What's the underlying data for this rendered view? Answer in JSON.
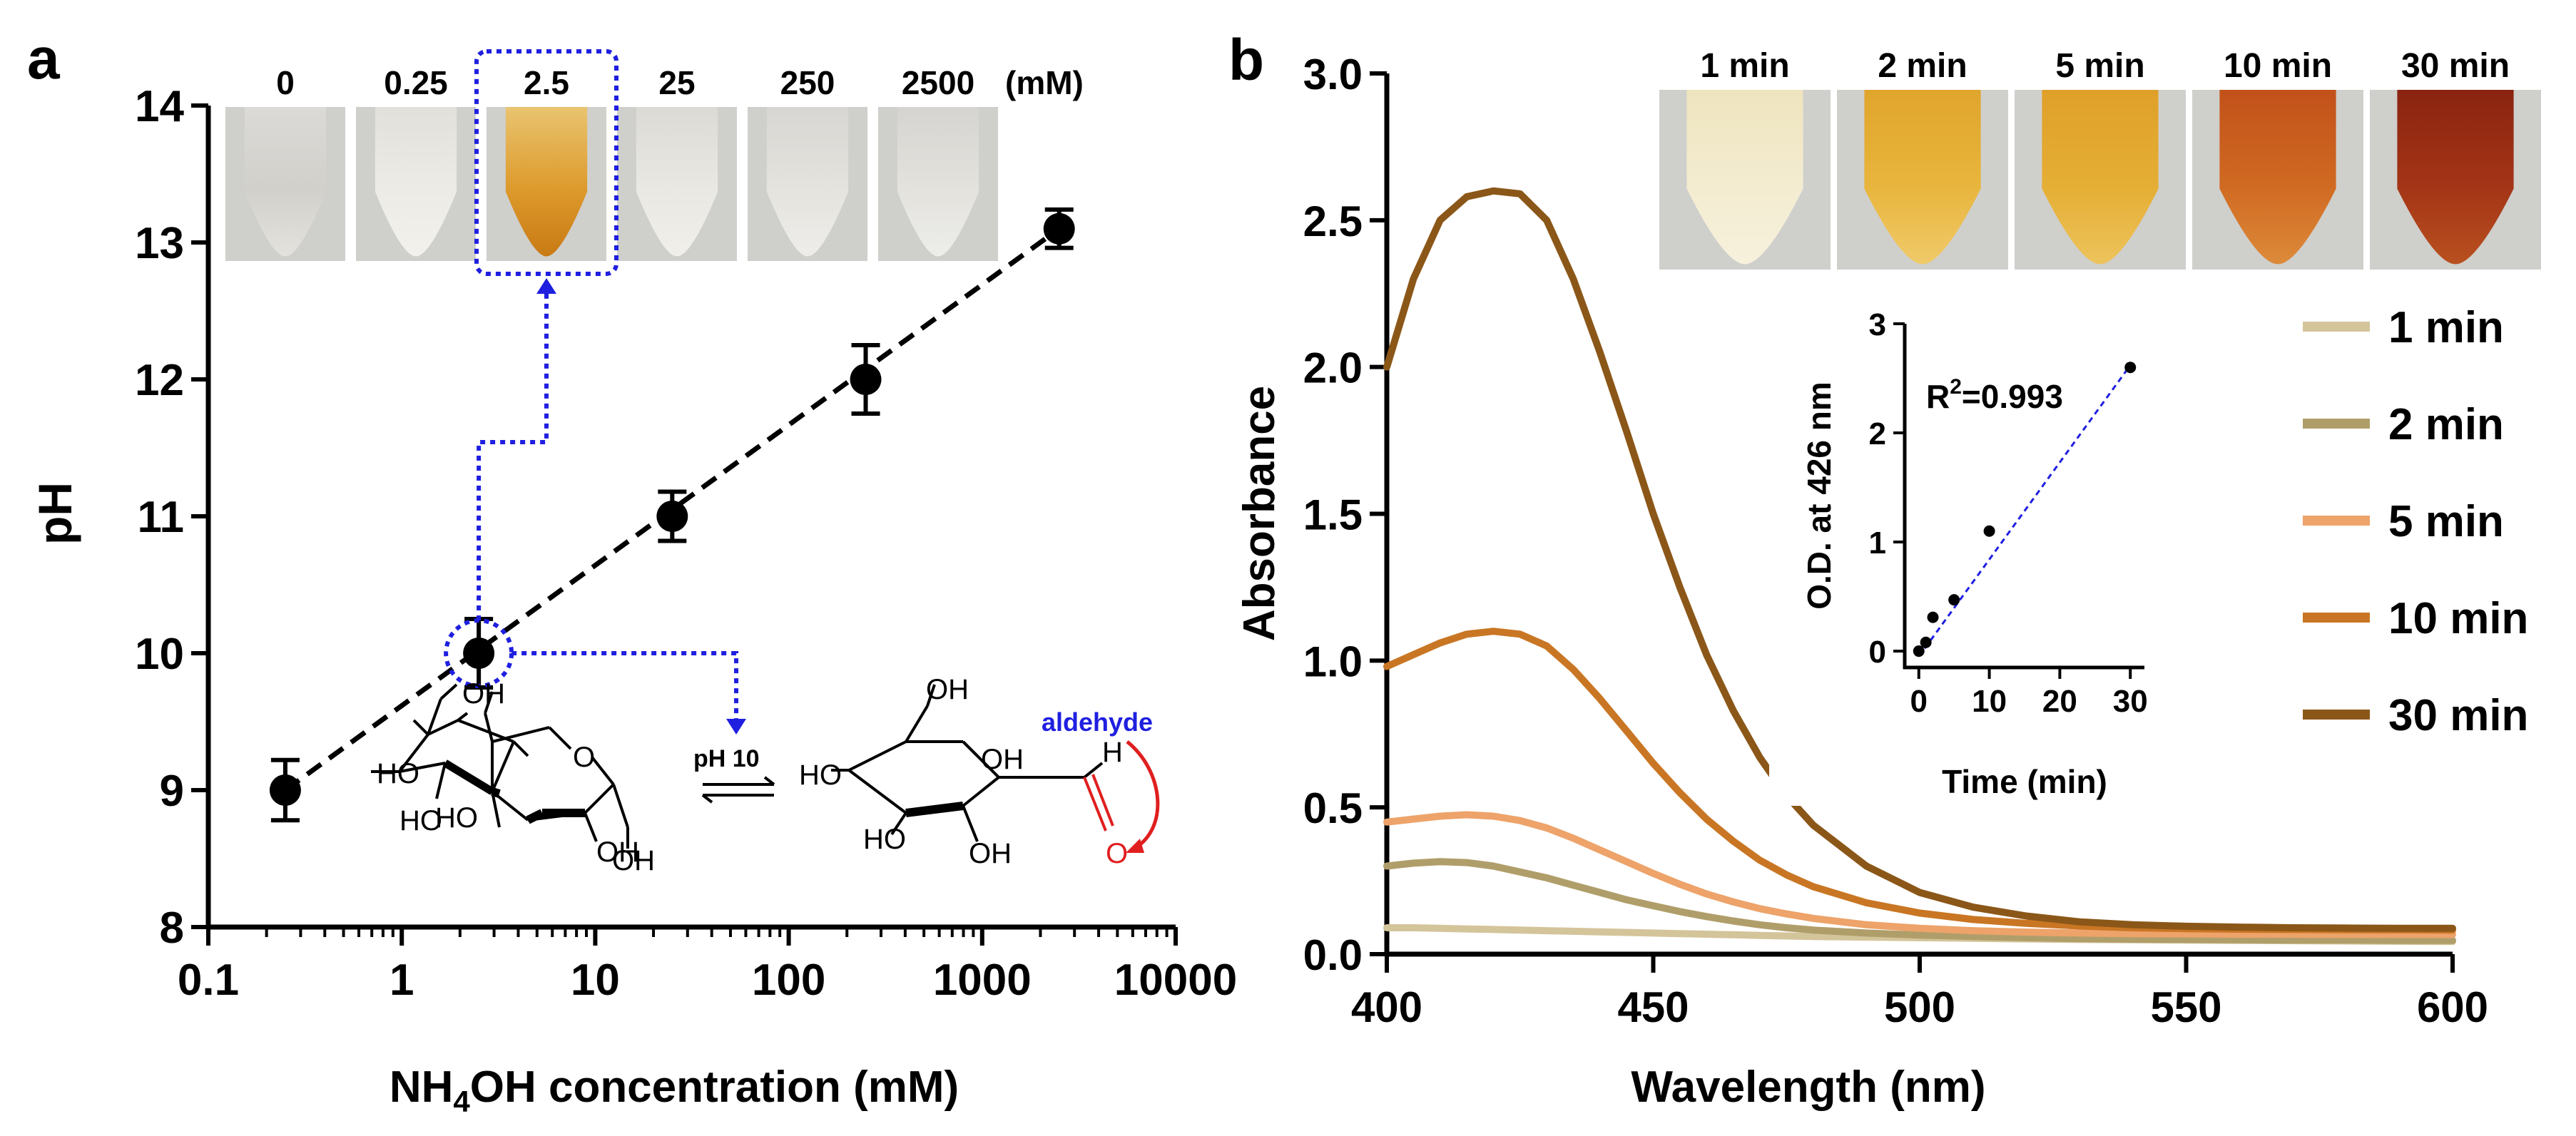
{
  "panels": {
    "a": {
      "label": "a"
    },
    "b": {
      "label": "b"
    }
  },
  "chart_data": [
    {
      "type": "scatter",
      "panel": "a",
      "xscale": "log",
      "xlabel_main": "NH",
      "xlabel_sub": "4",
      "xlabel_rest": "OH concentration (mM)",
      "ylabel": "pH",
      "xlim": [
        0.1,
        10000
      ],
      "ylim": [
        8,
        14
      ],
      "xticks": [
        0.1,
        1,
        10,
        100,
        1000,
        10000
      ],
      "xtick_labels": [
        "0.1",
        "1",
        "10",
        "100",
        "1000",
        "10000"
      ],
      "yticks": [
        8,
        9,
        10,
        11,
        12,
        13,
        14
      ],
      "ytick_labels": [
        "8",
        "9",
        "10",
        "11",
        "12",
        "13",
        "14"
      ],
      "points": [
        {
          "x": 0.25,
          "y": 9.0,
          "err": 0.22
        },
        {
          "x": 2.5,
          "y": 10.0,
          "err": 0.25
        },
        {
          "x": 25,
          "y": 11.0,
          "err": 0.18
        },
        {
          "x": 250,
          "y": 12.0,
          "err": 0.25
        },
        {
          "x": 2500,
          "y": 13.1,
          "err": 0.14
        }
      ],
      "fit_line": {
        "x": [
          0.25,
          2500
        ],
        "y": [
          9.0,
          13.1
        ],
        "style": "dashed"
      },
      "tube_labels": [
        "0",
        "0.25",
        "2.5",
        "25",
        "250",
        "2500"
      ],
      "tube_unit": "(mM)",
      "tube_colors": [
        {
          "top": "#dcdad6",
          "mid": "#d2d0cb",
          "bottom": "#e4e2dd"
        },
        {
          "top": "#e2e0db",
          "mid": "#ecebe6",
          "bottom": "#f2f1ec"
        },
        {
          "top": "#e9c470",
          "mid": "#dd9a2c",
          "bottom": "#c97a14"
        },
        {
          "top": "#dcdad5",
          "mid": "#e9e8e3",
          "bottom": "#f0efea"
        },
        {
          "top": "#d8d6d2",
          "mid": "#e4e3de",
          "bottom": "#eeede9"
        },
        {
          "top": "#d6d4d0",
          "mid": "#e3e2dd",
          "bottom": "#ededea"
        }
      ],
      "annotation": {
        "condition": "pH 10",
        "aldehyde_label": "aldehyde",
        "glucose_ring": {
          "oh_top": "OH",
          "ho_left": "HO",
          "ho_bottom": "HO",
          "oh_mid": "OH",
          "oh_right": "OH",
          "ring_o": "O"
        },
        "glucose_open": {
          "oh_top": "OH",
          "ho_left": "HO",
          "oh_right": "OH",
          "ho_bottom": "HO",
          "oh_mid": "OH",
          "h": "H",
          "o": "O"
        }
      },
      "colors": {
        "highlight": "#1f1fe0",
        "aldehyde": "#1f1fe0",
        "carbonyl": "#e01f1f",
        "points": "#000000"
      }
    },
    {
      "type": "line",
      "panel": "b",
      "xlabel": "Wavelength (nm)",
      "ylabel": "Absorbance",
      "xlim": [
        400,
        600
      ],
      "ylim": [
        0,
        3.0
      ],
      "xticks": [
        400,
        450,
        500,
        550,
        600
      ],
      "xtick_labels": [
        "400",
        "450",
        "500",
        "550",
        "600"
      ],
      "yticks": [
        0,
        0.5,
        1.0,
        1.5,
        2.0,
        2.5,
        3.0
      ],
      "ytick_labels": [
        "0.0",
        "0.5",
        "1.0",
        "1.5",
        "2.0",
        "2.5",
        "3.0"
      ],
      "x": [
        400,
        405,
        410,
        415,
        420,
        425,
        430,
        435,
        440,
        445,
        450,
        455,
        460,
        465,
        470,
        475,
        480,
        490,
        500,
        510,
        520,
        530,
        540,
        550,
        560,
        570,
        580,
        590,
        600
      ],
      "series": [
        {
          "name": "1 min",
          "color": "#d4c49a",
          "values": [
            0.09,
            0.09,
            0.088,
            0.086,
            0.084,
            0.082,
            0.08,
            0.078,
            0.076,
            0.074,
            0.072,
            0.07,
            0.068,
            0.066,
            0.064,
            0.062,
            0.06,
            0.058,
            0.056,
            0.054,
            0.052,
            0.05,
            0.049,
            0.048,
            0.047,
            0.046,
            0.045,
            0.044,
            0.043
          ]
        },
        {
          "name": "2 min",
          "color": "#b09e6a",
          "values": [
            0.3,
            0.31,
            0.315,
            0.312,
            0.3,
            0.28,
            0.26,
            0.235,
            0.21,
            0.185,
            0.165,
            0.145,
            0.128,
            0.113,
            0.1,
            0.09,
            0.082,
            0.072,
            0.065,
            0.06,
            0.056,
            0.053,
            0.051,
            0.05,
            0.049,
            0.048,
            0.048,
            0.047,
            0.047
          ]
        },
        {
          "name": "5 min",
          "color": "#eda36a",
          "values": [
            0.45,
            0.46,
            0.47,
            0.475,
            0.47,
            0.455,
            0.43,
            0.395,
            0.355,
            0.315,
            0.275,
            0.238,
            0.205,
            0.178,
            0.155,
            0.137,
            0.122,
            0.1,
            0.088,
            0.08,
            0.075,
            0.072,
            0.07,
            0.069,
            0.068,
            0.068,
            0.067,
            0.067,
            0.067
          ]
        },
        {
          "name": "10 min",
          "color": "#c97624",
          "values": [
            0.98,
            1.02,
            1.06,
            1.09,
            1.1,
            1.09,
            1.05,
            0.97,
            0.87,
            0.76,
            0.65,
            0.55,
            0.46,
            0.385,
            0.32,
            0.27,
            0.23,
            0.175,
            0.14,
            0.118,
            0.105,
            0.096,
            0.09,
            0.087,
            0.085,
            0.084,
            0.083,
            0.083,
            0.082
          ]
        },
        {
          "name": "30 min",
          "color": "#8b5718",
          "values": [
            2.0,
            2.3,
            2.5,
            2.58,
            2.6,
            2.59,
            2.5,
            2.3,
            2.05,
            1.78,
            1.5,
            1.25,
            1.02,
            0.83,
            0.67,
            0.54,
            0.44,
            0.3,
            0.21,
            0.16,
            0.13,
            0.11,
            0.1,
            0.095,
            0.092,
            0.09,
            0.089,
            0.088,
            0.088
          ]
        }
      ],
      "legend_position": "right",
      "tube_labels": [
        "1 min",
        "2 min",
        "5 min",
        "10 min",
        "30 min"
      ],
      "tube_colors": [
        {
          "top": "#efe4bf",
          "mid": "#f3ecd0",
          "bottom": "#f7f1dd"
        },
        {
          "top": "#e0a52c",
          "mid": "#e8b53c",
          "bottom": "#f0ca6a"
        },
        {
          "top": "#dfa02a",
          "mid": "#e5ae34",
          "bottom": "#edc35c"
        },
        {
          "top": "#c2511a",
          "mid": "#d06a22",
          "bottom": "#dc8a3a"
        },
        {
          "top": "#8a2410",
          "mid": "#a43416",
          "bottom": "#b8501f"
        }
      ],
      "inset": {
        "type": "scatter",
        "xlabel": "Time (min)",
        "ylabel": "O.D. at 426 nm",
        "xlim": [
          -2,
          32
        ],
        "ylim": [
          -0.15,
          3
        ],
        "xticks": [
          0,
          10,
          20,
          30
        ],
        "xtick_labels": [
          "0",
          "10",
          "20",
          "30"
        ],
        "yticks": [
          0,
          1,
          2,
          3
        ],
        "ytick_labels": [
          "0",
          "1",
          "2",
          "3"
        ],
        "points": [
          {
            "x": 0,
            "y": 0.0
          },
          {
            "x": 1,
            "y": 0.08
          },
          {
            "x": 2,
            "y": 0.31
          },
          {
            "x": 5,
            "y": 0.47
          },
          {
            "x": 10,
            "y": 1.1
          },
          {
            "x": 30,
            "y": 2.6
          }
        ],
        "fit_line": {
          "x": [
            0,
            30
          ],
          "y": [
            -0.05,
            2.62
          ],
          "style": "dashed",
          "color": "#1f1fe0"
        },
        "annotation_main": "R",
        "annotation_sup": "2",
        "annotation_rest": "=0.993"
      }
    }
  ]
}
